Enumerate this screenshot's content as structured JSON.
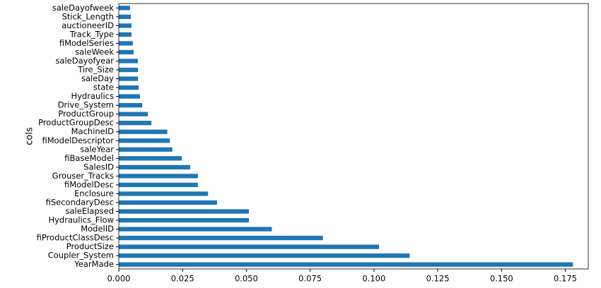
{
  "chart_data": {
    "type": "barh",
    "y_label": "cols",
    "categories": [
      "YearMade",
      "Coupler_System",
      "ProductSize",
      "fiProductClassDesc",
      "ModelID",
      "Hydraulics_Flow",
      "saleElapsed",
      "fiSecondaryDesc",
      "Enclosure",
      "fiModelDesc",
      "Grouser_Tracks",
      "SalesID",
      "fiBaseModel",
      "saleYear",
      "fiModelDescriptor",
      "MachineID",
      "ProductGroupDesc",
      "ProductGroup",
      "Drive_System",
      "Hydraulics",
      "state",
      "saleDay",
      "Tire_Size",
      "saleDayofyear",
      "saleWeek",
      "fiModelSeries",
      "Track_Type",
      "auctioneerID",
      "Stick_Length",
      "saleDayofweek"
    ],
    "values": [
      0.178,
      0.114,
      0.102,
      0.08,
      0.06,
      0.051,
      0.051,
      0.0385,
      0.035,
      0.031,
      0.031,
      0.028,
      0.0247,
      0.021,
      0.02,
      0.019,
      0.0128,
      0.0114,
      0.0092,
      0.0083,
      0.0078,
      0.0075,
      0.0075,
      0.0075,
      0.0058,
      0.0055,
      0.005,
      0.005,
      0.0047,
      0.0044
    ],
    "color": "#1f77b4",
    "xlim": [
      0,
      0.184
    ],
    "xticks": [
      {
        "value": 0,
        "label": "0.000"
      },
      {
        "value": 0.025,
        "label": "0.025"
      },
      {
        "value": 0.05,
        "label": "0.050"
      },
      {
        "value": 0.075,
        "label": "0.075"
      },
      {
        "value": 0.1,
        "label": "0.100"
      },
      {
        "value": 0.125,
        "label": "0.125"
      },
      {
        "value": 0.15,
        "label": "0.150"
      },
      {
        "value": 0.175,
        "label": "0.175"
      }
    ]
  }
}
